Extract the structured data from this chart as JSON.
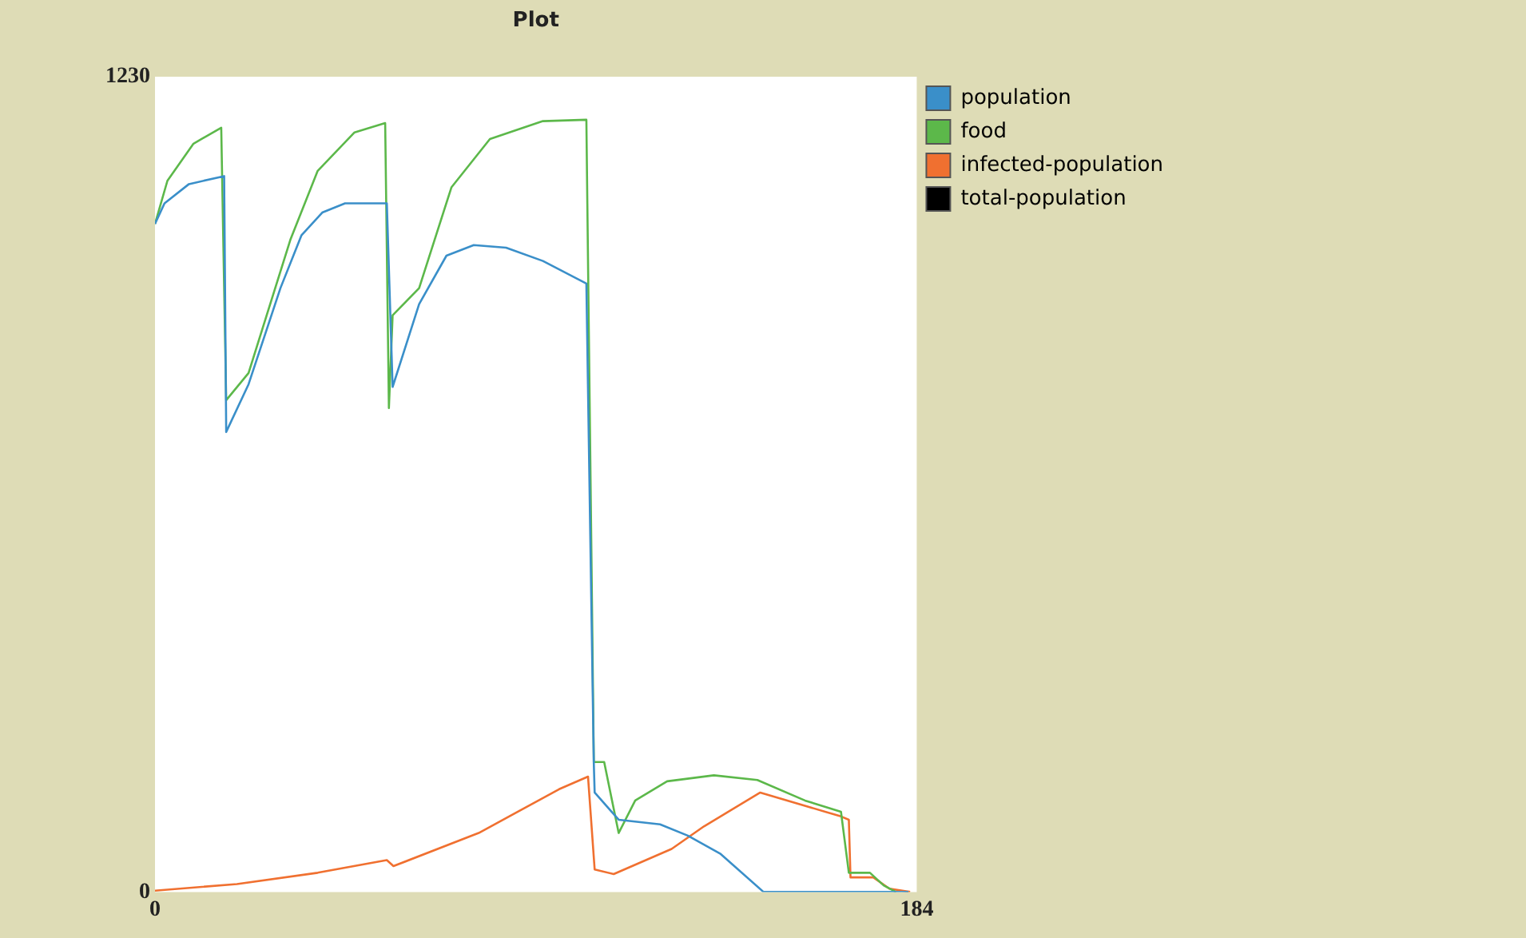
{
  "chart_data": {
    "type": "line",
    "title": "Plot",
    "xlim": [
      0,
      184
    ],
    "xticks": [
      0,
      184
    ],
    "ylim": [
      0,
      1230
    ],
    "yticks": [
      0,
      1230
    ],
    "grid": false,
    "legend": "top right",
    "marker": "none",
    "line_style": "solid",
    "series": [
      {
        "name": "population",
        "color": "#3a8fc9",
        "x": [
          0,
          2.3,
          8.2,
          16.7,
          17.2,
          22.6,
          30.3,
          35.4,
          40.4,
          45.9,
          56,
          57.4,
          63.8,
          70.4,
          77,
          84.8,
          93.7,
          104.2,
          106,
          106.2,
          112,
          122,
          128.7,
          136.5,
          147,
          182
        ],
        "values": [
          1008,
          1039,
          1068,
          1080,
          694,
          766,
          911,
          991,
          1025,
          1039,
          1039,
          762,
          887,
          960,
          976,
          972,
          952,
          918,
          193,
          150,
          109,
          102,
          85,
          58,
          0,
          0
        ]
      },
      {
        "name": "food",
        "color": "#5cb84a",
        "x": [
          0,
          3,
          9.3,
          16,
          17.2,
          22.6,
          32.7,
          39.3,
          48.2,
          55.6,
          56.5,
          57.4,
          63.8,
          71.6,
          80.9,
          93.7,
          104.2,
          106,
          108.5,
          112,
          116,
          123.7,
          135,
          145.5,
          157,
          165.7,
          167.6,
          172.7,
          176,
          179
        ],
        "values": [
          1008,
          1073,
          1129,
          1153,
          742,
          783,
          984,
          1088,
          1146,
          1160,
          730,
          870,
          911,
          1063,
          1136,
          1163,
          1165,
          196,
          196,
          89,
          138,
          167,
          176,
          169,
          138,
          121,
          29,
          29,
          10,
          0
        ]
      },
      {
        "name": "infected-population",
        "color": "#f07030",
        "x": [
          0,
          19.8,
          39.3,
          56,
          57.6,
          78.2,
          97.6,
          104.6,
          106.2,
          110.8,
          124.8,
          132.6,
          146.2,
          165.7,
          167.6,
          168,
          173.5,
          177.4,
          182.4
        ],
        "values": [
          2,
          12,
          29,
          48,
          39,
          89,
          155,
          174,
          34,
          27,
          65,
          99,
          150,
          114,
          109,
          22,
          22,
          5,
          0
        ]
      },
      {
        "name": "total-population",
        "color": "#000000"
      }
    ]
  }
}
